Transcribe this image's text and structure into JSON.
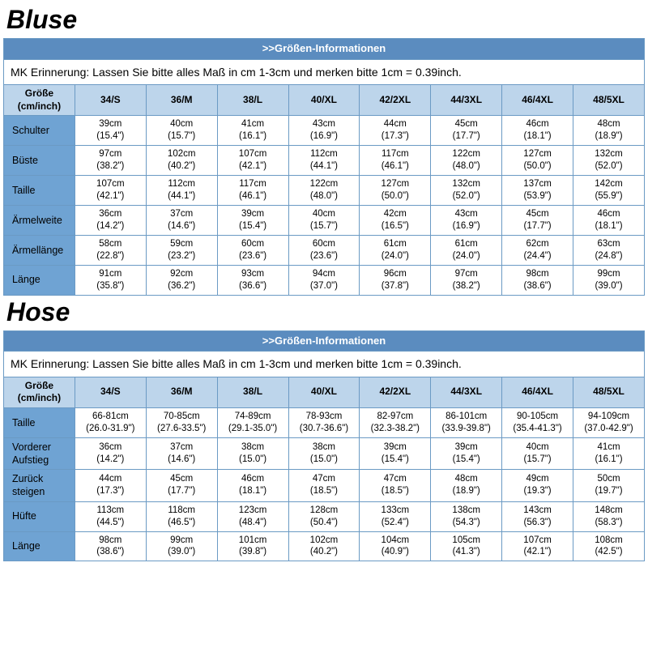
{
  "colors": {
    "banner_bg": "#5b8cbf",
    "banner_text": "#ffffff",
    "header_bg": "#bdd5eb",
    "rowlabel_bg": "#6fa3d3",
    "cell_bg": "#ffffff",
    "border": "#6b9ac4",
    "text": "#000000"
  },
  "typography": {
    "title_fontsize": 32,
    "title_weight": 900,
    "title_style": "italic",
    "cell_fontsize": 11.5,
    "header_fontsize": 12,
    "banner_fontsize": 13,
    "reminder_fontsize": 14
  },
  "sections": [
    {
      "title": "Bluse",
      "banner": ">>Größen-Informationen",
      "reminder": "MK Erinnerung: Lassen Sie bitte alles Maß in cm 1-3cm und merken bitte 1cm = 0.39inch.",
      "header": [
        "Größe (cm/inch)",
        "34/S",
        "36/M",
        "38/L",
        "40/XL",
        "42/2XL",
        "44/3XL",
        "46/4XL",
        "48/5XL"
      ],
      "rows": [
        {
          "label": "Schulter",
          "cells": [
            {
              "cm": "39cm",
              "in": "(15.4\")"
            },
            {
              "cm": "40cm",
              "in": "(15.7\")"
            },
            {
              "cm": "41cm",
              "in": "(16.1\")"
            },
            {
              "cm": "43cm",
              "in": "(16.9\")"
            },
            {
              "cm": "44cm",
              "in": "(17.3\")"
            },
            {
              "cm": "45cm",
              "in": "(17.7\")"
            },
            {
              "cm": "46cm",
              "in": "(18.1\")"
            },
            {
              "cm": "48cm",
              "in": "(18.9\")"
            }
          ]
        },
        {
          "label": "Büste",
          "cells": [
            {
              "cm": "97cm",
              "in": "(38.2\")"
            },
            {
              "cm": "102cm",
              "in": "(40.2\")"
            },
            {
              "cm": "107cm",
              "in": "(42.1\")"
            },
            {
              "cm": "112cm",
              "in": "(44.1\")"
            },
            {
              "cm": "117cm",
              "in": "(46.1\")"
            },
            {
              "cm": "122cm",
              "in": "(48.0\")"
            },
            {
              "cm": "127cm",
              "in": "(50.0\")"
            },
            {
              "cm": "132cm",
              "in": "(52.0\")"
            }
          ]
        },
        {
          "label": "Taille",
          "cells": [
            {
              "cm": "107cm",
              "in": "(42.1\")"
            },
            {
              "cm": "112cm",
              "in": "(44.1\")"
            },
            {
              "cm": "117cm",
              "in": "(46.1\")"
            },
            {
              "cm": "122cm",
              "in": "(48.0\")"
            },
            {
              "cm": "127cm",
              "in": "(50.0\")"
            },
            {
              "cm": "132cm",
              "in": "(52.0\")"
            },
            {
              "cm": "137cm",
              "in": "(53.9\")"
            },
            {
              "cm": "142cm",
              "in": "(55.9\")"
            }
          ]
        },
        {
          "label": "Ärmelweite",
          "cells": [
            {
              "cm": "36cm",
              "in": "(14.2\")"
            },
            {
              "cm": "37cm",
              "in": "(14.6\")"
            },
            {
              "cm": "39cm",
              "in": "(15.4\")"
            },
            {
              "cm": "40cm",
              "in": "(15.7\")"
            },
            {
              "cm": "42cm",
              "in": "(16.5\")"
            },
            {
              "cm": "43cm",
              "in": "(16.9\")"
            },
            {
              "cm": "45cm",
              "in": "(17.7\")"
            },
            {
              "cm": "46cm",
              "in": "(18.1\")"
            }
          ]
        },
        {
          "label": "Ärmellänge",
          "cells": [
            {
              "cm": "58cm",
              "in": "(22.8\")"
            },
            {
              "cm": "59cm",
              "in": "(23.2\")"
            },
            {
              "cm": "60cm",
              "in": "(23.6\")"
            },
            {
              "cm": "60cm",
              "in": "(23.6\")"
            },
            {
              "cm": "61cm",
              "in": "(24.0\")"
            },
            {
              "cm": "61cm",
              "in": "(24.0\")"
            },
            {
              "cm": "62cm",
              "in": "(24.4\")"
            },
            {
              "cm": "63cm",
              "in": "(24.8\")"
            }
          ]
        },
        {
          "label": "Länge",
          "cells": [
            {
              "cm": "91cm",
              "in": "(35.8\")"
            },
            {
              "cm": "92cm",
              "in": "(36.2\")"
            },
            {
              "cm": "93cm",
              "in": "(36.6\")"
            },
            {
              "cm": "94cm",
              "in": "(37.0\")"
            },
            {
              "cm": "96cm",
              "in": "(37.8\")"
            },
            {
              "cm": "97cm",
              "in": "(38.2\")"
            },
            {
              "cm": "98cm",
              "in": "(38.6\")"
            },
            {
              "cm": "99cm",
              "in": "(39.0\")"
            }
          ]
        }
      ]
    },
    {
      "title": "Hose",
      "banner": ">>Größen-Informationen",
      "reminder": "MK Erinnerung: Lassen Sie bitte alles Maß in cm 1-3cm und merken bitte 1cm = 0.39inch.",
      "header": [
        "Größe (cm/inch)",
        "34/S",
        "36/M",
        "38/L",
        "40/XL",
        "42/2XL",
        "44/3XL",
        "46/4XL",
        "48/5XL"
      ],
      "rows": [
        {
          "label": "Taille",
          "cells": [
            {
              "cm": "66-81cm",
              "in": "(26.0-31.9\")"
            },
            {
              "cm": "70-85cm",
              "in": "(27.6-33.5\")"
            },
            {
              "cm": "74-89cm",
              "in": "(29.1-35.0\")"
            },
            {
              "cm": "78-93cm",
              "in": "(30.7-36.6\")"
            },
            {
              "cm": "82-97cm",
              "in": "(32.3-38.2\")"
            },
            {
              "cm": "86-101cm",
              "in": "(33.9-39.8\")"
            },
            {
              "cm": "90-105cm",
              "in": "(35.4-41.3\")"
            },
            {
              "cm": "94-109cm",
              "in": "(37.0-42.9\")"
            }
          ]
        },
        {
          "label": "Vorderer Aufstieg",
          "cells": [
            {
              "cm": "36cm",
              "in": "(14.2\")"
            },
            {
              "cm": "37cm",
              "in": "(14.6\")"
            },
            {
              "cm": "38cm",
              "in": "(15.0\")"
            },
            {
              "cm": "38cm",
              "in": "(15.0\")"
            },
            {
              "cm": "39cm",
              "in": "(15.4\")"
            },
            {
              "cm": "39cm",
              "in": "(15.4\")"
            },
            {
              "cm": "40cm",
              "in": "(15.7\")"
            },
            {
              "cm": "41cm",
              "in": "(16.1\")"
            }
          ]
        },
        {
          "label": "Zurück steigen",
          "cells": [
            {
              "cm": "44cm",
              "in": "(17.3\")"
            },
            {
              "cm": "45cm",
              "in": "(17.7\")"
            },
            {
              "cm": "46cm",
              "in": "(18.1\")"
            },
            {
              "cm": "47cm",
              "in": "(18.5\")"
            },
            {
              "cm": "47cm",
              "in": "(18.5\")"
            },
            {
              "cm": "48cm",
              "in": "(18.9\")"
            },
            {
              "cm": "49cm",
              "in": "(19.3\")"
            },
            {
              "cm": "50cm",
              "in": "(19.7\")"
            }
          ]
        },
        {
          "label": "Hüfte",
          "cells": [
            {
              "cm": "113cm",
              "in": "(44.5\")"
            },
            {
              "cm": "118cm",
              "in": "(46.5\")"
            },
            {
              "cm": "123cm",
              "in": "(48.4\")"
            },
            {
              "cm": "128cm",
              "in": "(50.4\")"
            },
            {
              "cm": "133cm",
              "in": "(52.4\")"
            },
            {
              "cm": "138cm",
              "in": "(54.3\")"
            },
            {
              "cm": "143cm",
              "in": "(56.3\")"
            },
            {
              "cm": "148cm",
              "in": "(58.3\")"
            }
          ]
        },
        {
          "label": "Länge",
          "cells": [
            {
              "cm": "98cm",
              "in": "(38.6\")"
            },
            {
              "cm": "99cm",
              "in": "(39.0\")"
            },
            {
              "cm": "101cm",
              "in": "(39.8\")"
            },
            {
              "cm": "102cm",
              "in": "(40.2\")"
            },
            {
              "cm": "104cm",
              "in": "(40.9\")"
            },
            {
              "cm": "105cm",
              "in": "(41.3\")"
            },
            {
              "cm": "107cm",
              "in": "(42.1\")"
            },
            {
              "cm": "108cm",
              "in": "(42.5\")"
            }
          ]
        }
      ]
    }
  ]
}
